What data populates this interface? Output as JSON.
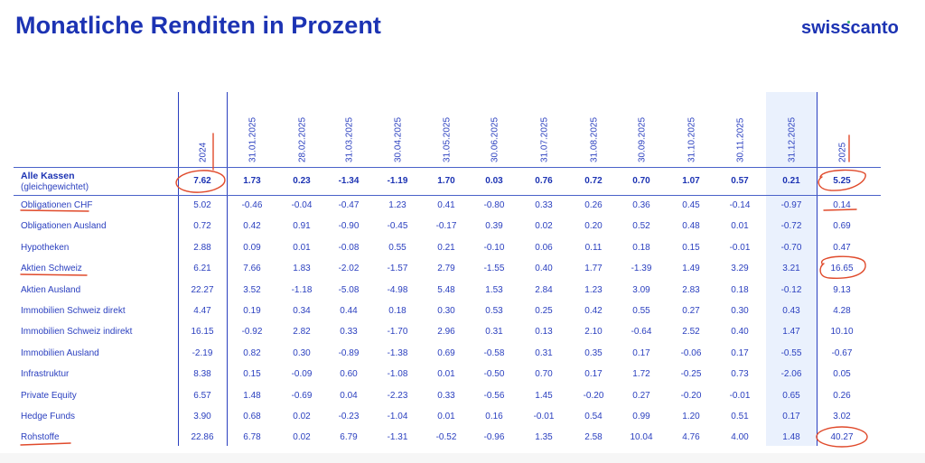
{
  "header": {
    "title": "Monatliche Renditen in Prozent",
    "logo": "swisscanto"
  },
  "table": {
    "columns": [
      "2024",
      "31.01.2025",
      "28.02.2025",
      "31.03.2025",
      "30.04.2025",
      "31.05.2025",
      "30.06.2025",
      "31.07.2025",
      "31.08.2025",
      "30.09.2025",
      "31.10.2025",
      "30.11.2025",
      "31.12.2025",
      "2025"
    ],
    "highlighted_column": "31.12.2025",
    "summary_row": {
      "label": "Alle Kassen",
      "sublabel": "(gleichgewichtet)",
      "values": [
        "7.62",
        "1.73",
        "0.23",
        "-1.34",
        "-1.19",
        "1.70",
        "0.03",
        "0.76",
        "0.72",
        "0.70",
        "1.07",
        "0.57",
        "0.21",
        "5.25"
      ]
    },
    "rows": [
      {
        "label": "Obligationen CHF",
        "values": [
          "5.02",
          "-0.46",
          "-0.04",
          "-0.47",
          "1.23",
          "0.41",
          "-0.80",
          "0.33",
          "0.26",
          "0.36",
          "0.45",
          "-0.14",
          "-0.97",
          "0.14"
        ]
      },
      {
        "label": "Obligationen Ausland",
        "values": [
          "0.72",
          "0.42",
          "0.91",
          "-0.90",
          "-0.45",
          "-0.17",
          "0.39",
          "0.02",
          "0.20",
          "0.52",
          "0.48",
          "0.01",
          "-0.72",
          "0.69"
        ]
      },
      {
        "label": "Hypotheken",
        "values": [
          "2.88",
          "0.09",
          "0.01",
          "-0.08",
          "0.55",
          "0.21",
          "-0.10",
          "0.06",
          "0.11",
          "0.18",
          "0.15",
          "-0.01",
          "-0.70",
          "0.47"
        ]
      },
      {
        "label": "Aktien Schweiz",
        "values": [
          "6.21",
          "7.66",
          "1.83",
          "-2.02",
          "-1.57",
          "2.79",
          "-1.55",
          "0.40",
          "1.77",
          "-1.39",
          "1.49",
          "3.29",
          "3.21",
          "16.65"
        ]
      },
      {
        "label": "Aktien Ausland",
        "values": [
          "22.27",
          "3.52",
          "-1.18",
          "-5.08",
          "-4.98",
          "5.48",
          "1.53",
          "2.84",
          "1.23",
          "3.09",
          "2.83",
          "0.18",
          "-0.12",
          "9.13"
        ]
      },
      {
        "label": "Immobilien Schweiz direkt",
        "values": [
          "4.47",
          "0.19",
          "0.34",
          "0.44",
          "0.18",
          "0.30",
          "0.53",
          "0.25",
          "0.42",
          "0.55",
          "0.27",
          "0.30",
          "0.43",
          "4.28"
        ]
      },
      {
        "label": "Immobilien Schweiz indirekt",
        "values": [
          "16.15",
          "-0.92",
          "2.82",
          "0.33",
          "-1.70",
          "2.96",
          "0.31",
          "0.13",
          "2.10",
          "-0.64",
          "2.52",
          "0.40",
          "1.47",
          "10.10"
        ]
      },
      {
        "label": "Immobilien Ausland",
        "values": [
          "-2.19",
          "0.82",
          "0.30",
          "-0.89",
          "-1.38",
          "0.69",
          "-0.58",
          "0.31",
          "0.35",
          "0.17",
          "-0.06",
          "0.17",
          "-0.55",
          "-0.67"
        ]
      },
      {
        "label": "Infrastruktur",
        "values": [
          "8.38",
          "0.15",
          "-0.09",
          "0.60",
          "-1.08",
          "0.01",
          "-0.50",
          "0.70",
          "0.17",
          "1.72",
          "-0.25",
          "0.73",
          "-2.06",
          "0.05"
        ]
      },
      {
        "label": "Private Equity",
        "values": [
          "6.57",
          "1.48",
          "-0.69",
          "0.04",
          "-2.23",
          "0.33",
          "-0.56",
          "1.45",
          "-0.20",
          "0.27",
          "-0.20",
          "-0.01",
          "0.65",
          "0.26"
        ]
      },
      {
        "label": "Hedge Funds",
        "values": [
          "3.90",
          "0.68",
          "0.02",
          "-0.23",
          "-1.04",
          "0.01",
          "0.16",
          "-0.01",
          "0.54",
          "0.99",
          "1.20",
          "0.51",
          "0.17",
          "3.02"
        ]
      },
      {
        "label": "Rohstoffe",
        "values": [
          "22.86",
          "6.78",
          "0.02",
          "6.79",
          "-1.31",
          "-0.52",
          "-0.96",
          "1.35",
          "2.58",
          "10.04",
          "4.76",
          "4.00",
          "1.48",
          "40.27"
        ]
      }
    ]
  },
  "annotations": {
    "circled": [
      "7.62",
      "5.25",
      "16.65",
      "40.27"
    ],
    "underlined": [
      "Obligationen CHF",
      "Aktien Schweiz",
      "Rohstoffe",
      "0.14"
    ],
    "color": "#e04a2b"
  },
  "colors": {
    "brand_blue": "#1c33b3",
    "text_blue": "#2a3fbf",
    "highlight_column": "#eaf1fd",
    "logo_dot": "#35b06a"
  }
}
